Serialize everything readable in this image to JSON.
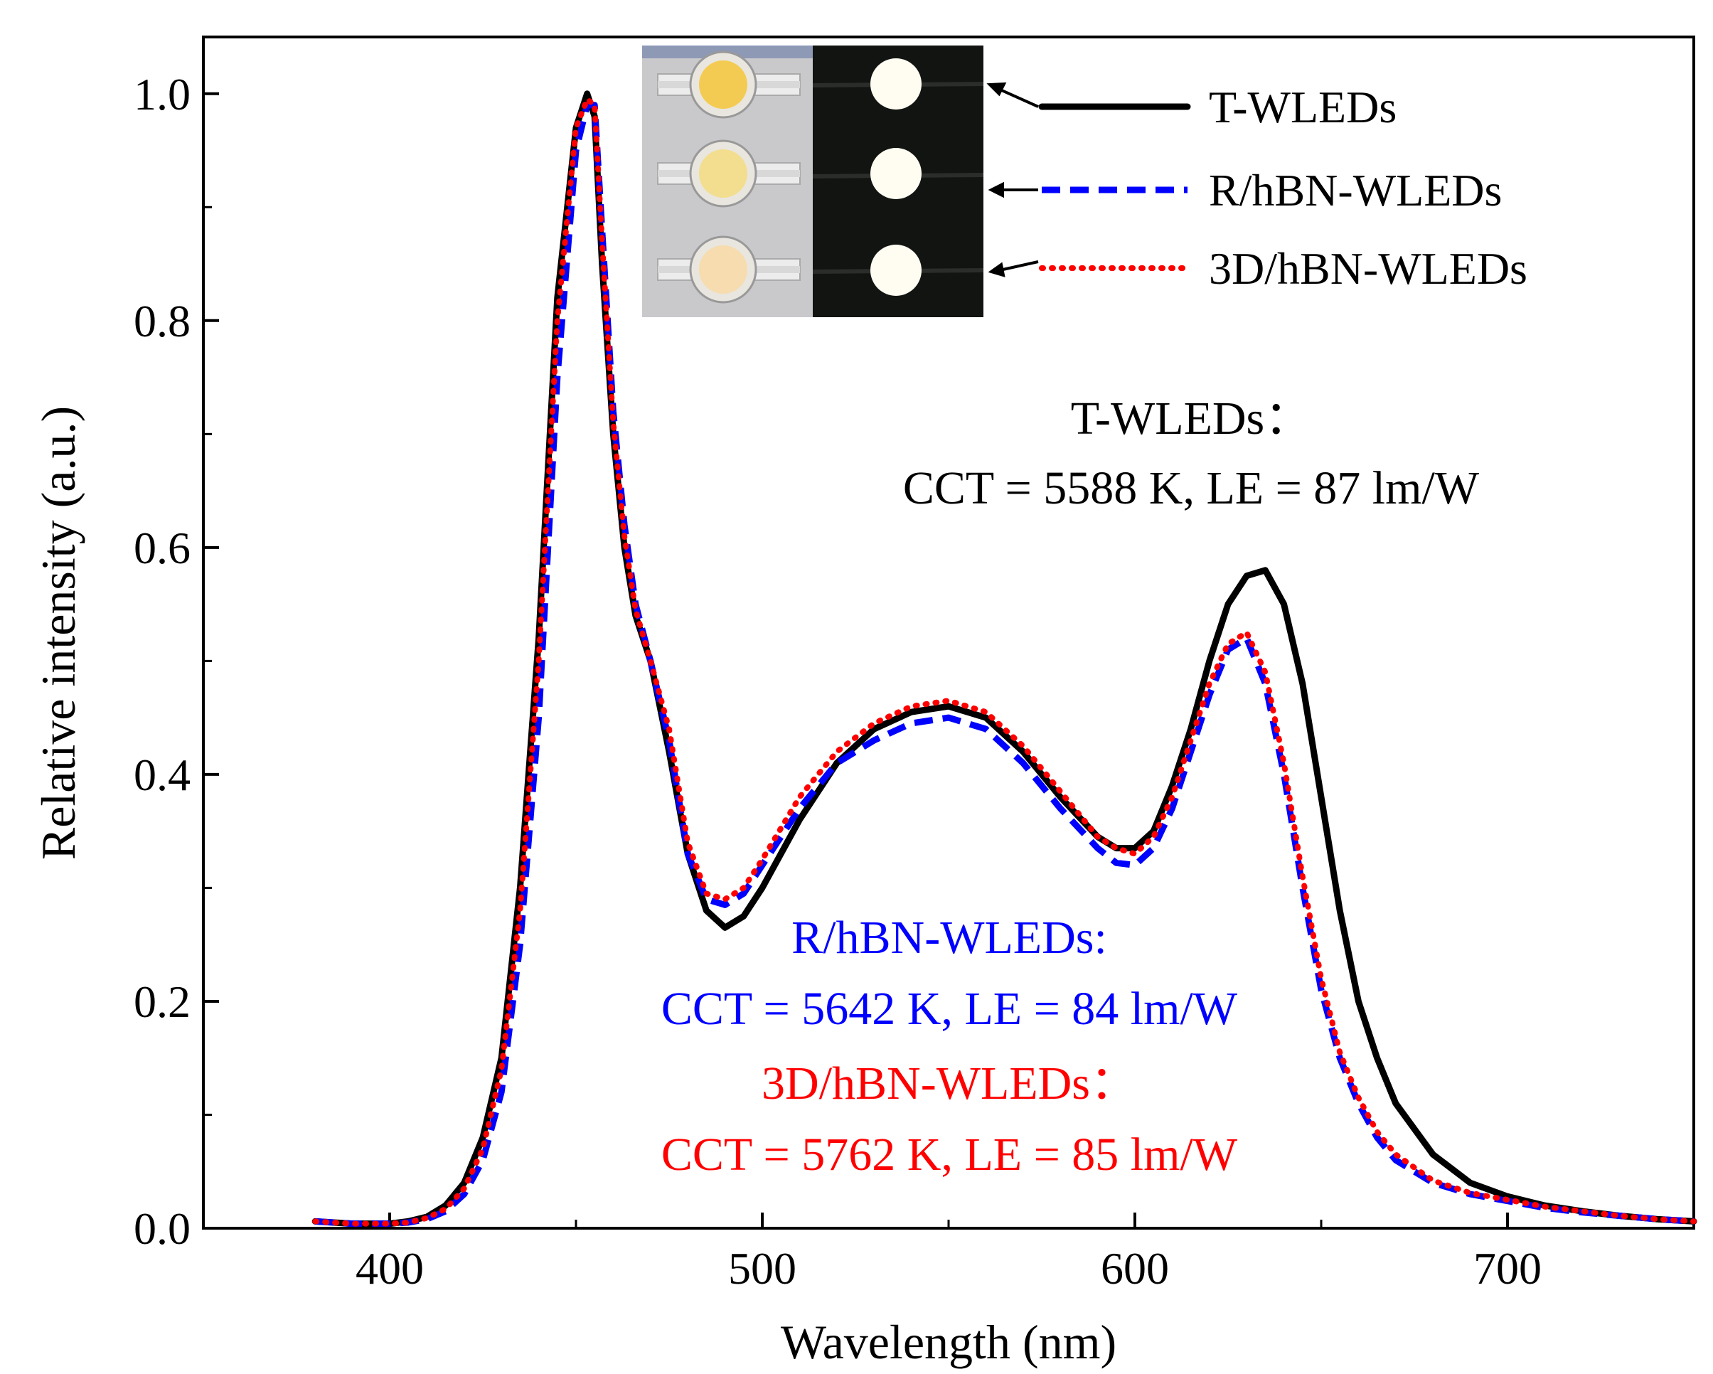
{
  "chart_data": {
    "type": "line",
    "title": "",
    "xlabel": "Wavelength (nm)",
    "ylabel": "Relative  intensity (a.u.)",
    "xlim": [
      350,
      750
    ],
    "ylim": [
      0,
      1.05
    ],
    "x_ticks": [
      400,
      500,
      600,
      700
    ],
    "x_tick_labels": [
      "400",
      "500",
      "600",
      "700"
    ],
    "y_ticks": [
      0,
      0.2,
      0.4,
      0.6,
      0.8,
      1.0
    ],
    "y_tick_labels": [
      "0.0",
      "0.2",
      "0.4",
      "0.6",
      "0.8",
      "1.0"
    ],
    "grid": false,
    "legend_position": "top-right",
    "series": [
      {
        "name": "T-WLEDs",
        "color": "#000000",
        "style": "solid",
        "x": [
          380,
          390,
          400,
          405,
          410,
          415,
          420,
          425,
          430,
          435,
          440,
          445,
          450,
          453,
          455,
          457,
          460,
          463,
          466,
          470,
          475,
          480,
          485,
          490,
          495,
          500,
          510,
          520,
          530,
          540,
          550,
          560,
          570,
          580,
          590,
          595,
          600,
          605,
          610,
          615,
          620,
          625,
          630,
          635,
          640,
          645,
          650,
          655,
          660,
          665,
          670,
          680,
          690,
          700,
          710,
          720,
          730,
          740,
          750
        ],
        "y": [
          0.006,
          0.004,
          0.004,
          0.006,
          0.01,
          0.02,
          0.04,
          0.08,
          0.15,
          0.3,
          0.52,
          0.82,
          0.97,
          1.0,
          0.98,
          0.85,
          0.7,
          0.6,
          0.54,
          0.5,
          0.42,
          0.33,
          0.28,
          0.265,
          0.275,
          0.3,
          0.36,
          0.41,
          0.44,
          0.455,
          0.46,
          0.45,
          0.42,
          0.38,
          0.345,
          0.335,
          0.335,
          0.35,
          0.39,
          0.44,
          0.5,
          0.55,
          0.575,
          0.58,
          0.55,
          0.48,
          0.38,
          0.28,
          0.2,
          0.15,
          0.11,
          0.065,
          0.04,
          0.028,
          0.02,
          0.015,
          0.011,
          0.008,
          0.006
        ]
      },
      {
        "name": "R/hBN-WLEDs",
        "color": "#0000ff",
        "style": "dashed",
        "x": [
          380,
          390,
          400,
          405,
          410,
          415,
          420,
          425,
          430,
          435,
          440,
          445,
          450,
          453,
          455,
          457,
          460,
          463,
          466,
          470,
          475,
          480,
          485,
          490,
          495,
          500,
          510,
          520,
          530,
          540,
          550,
          560,
          570,
          580,
          590,
          595,
          600,
          605,
          610,
          615,
          620,
          625,
          630,
          635,
          640,
          645,
          650,
          655,
          660,
          665,
          670,
          680,
          690,
          700,
          710,
          720,
          730,
          740,
          750
        ],
        "y": [
          0.006,
          0.004,
          0.004,
          0.005,
          0.008,
          0.015,
          0.03,
          0.06,
          0.12,
          0.25,
          0.45,
          0.75,
          0.95,
          0.99,
          0.99,
          0.88,
          0.72,
          0.62,
          0.55,
          0.5,
          0.43,
          0.33,
          0.29,
          0.285,
          0.295,
          0.32,
          0.37,
          0.41,
          0.43,
          0.445,
          0.45,
          0.44,
          0.41,
          0.37,
          0.335,
          0.322,
          0.32,
          0.335,
          0.37,
          0.42,
          0.47,
          0.51,
          0.52,
          0.48,
          0.4,
          0.3,
          0.21,
          0.15,
          0.11,
          0.08,
          0.06,
          0.04,
          0.03,
          0.024,
          0.018,
          0.014,
          0.011,
          0.008,
          0.006
        ]
      },
      {
        "name": "3D/hBN-WLEDs",
        "color": "#ff0000",
        "style": "dotted",
        "x": [
          380,
          390,
          400,
          405,
          410,
          415,
          420,
          425,
          430,
          435,
          440,
          445,
          450,
          453,
          455,
          457,
          460,
          463,
          466,
          470,
          475,
          480,
          485,
          490,
          495,
          500,
          510,
          520,
          530,
          540,
          550,
          560,
          570,
          580,
          590,
          595,
          600,
          605,
          610,
          615,
          620,
          625,
          630,
          635,
          640,
          645,
          650,
          655,
          660,
          665,
          670,
          680,
          690,
          700,
          710,
          720,
          730,
          740,
          750
        ],
        "y": [
          0.006,
          0.004,
          0.004,
          0.005,
          0.009,
          0.017,
          0.035,
          0.07,
          0.14,
          0.28,
          0.5,
          0.8,
          0.97,
          0.995,
          0.99,
          0.87,
          0.71,
          0.61,
          0.545,
          0.5,
          0.44,
          0.34,
          0.295,
          0.29,
          0.3,
          0.325,
          0.38,
          0.42,
          0.445,
          0.46,
          0.465,
          0.455,
          0.425,
          0.385,
          0.345,
          0.335,
          0.33,
          0.345,
          0.38,
          0.43,
          0.48,
          0.515,
          0.525,
          0.49,
          0.41,
          0.31,
          0.22,
          0.155,
          0.115,
          0.085,
          0.065,
          0.042,
          0.031,
          0.025,
          0.019,
          0.015,
          0.011,
          0.008,
          0.006
        ]
      }
    ],
    "annotations": [
      {
        "line1": "T-WLEDs：",
        "line2": "CCT = 5588 K, LE = 87 lm/W",
        "color": "#000000"
      },
      {
        "line1": "R/hBN-WLEDs:",
        "line2": "CCT = 5642 K, LE = 84 lm/W",
        "color": "#0000ff"
      },
      {
        "line1": "3D/hBN-WLEDs：",
        "line2": "CCT = 5762 K, LE = 85 lm/W",
        "color": "#ff0000"
      }
    ],
    "inset": {
      "description_icon": "led-photo-icon"
    }
  }
}
